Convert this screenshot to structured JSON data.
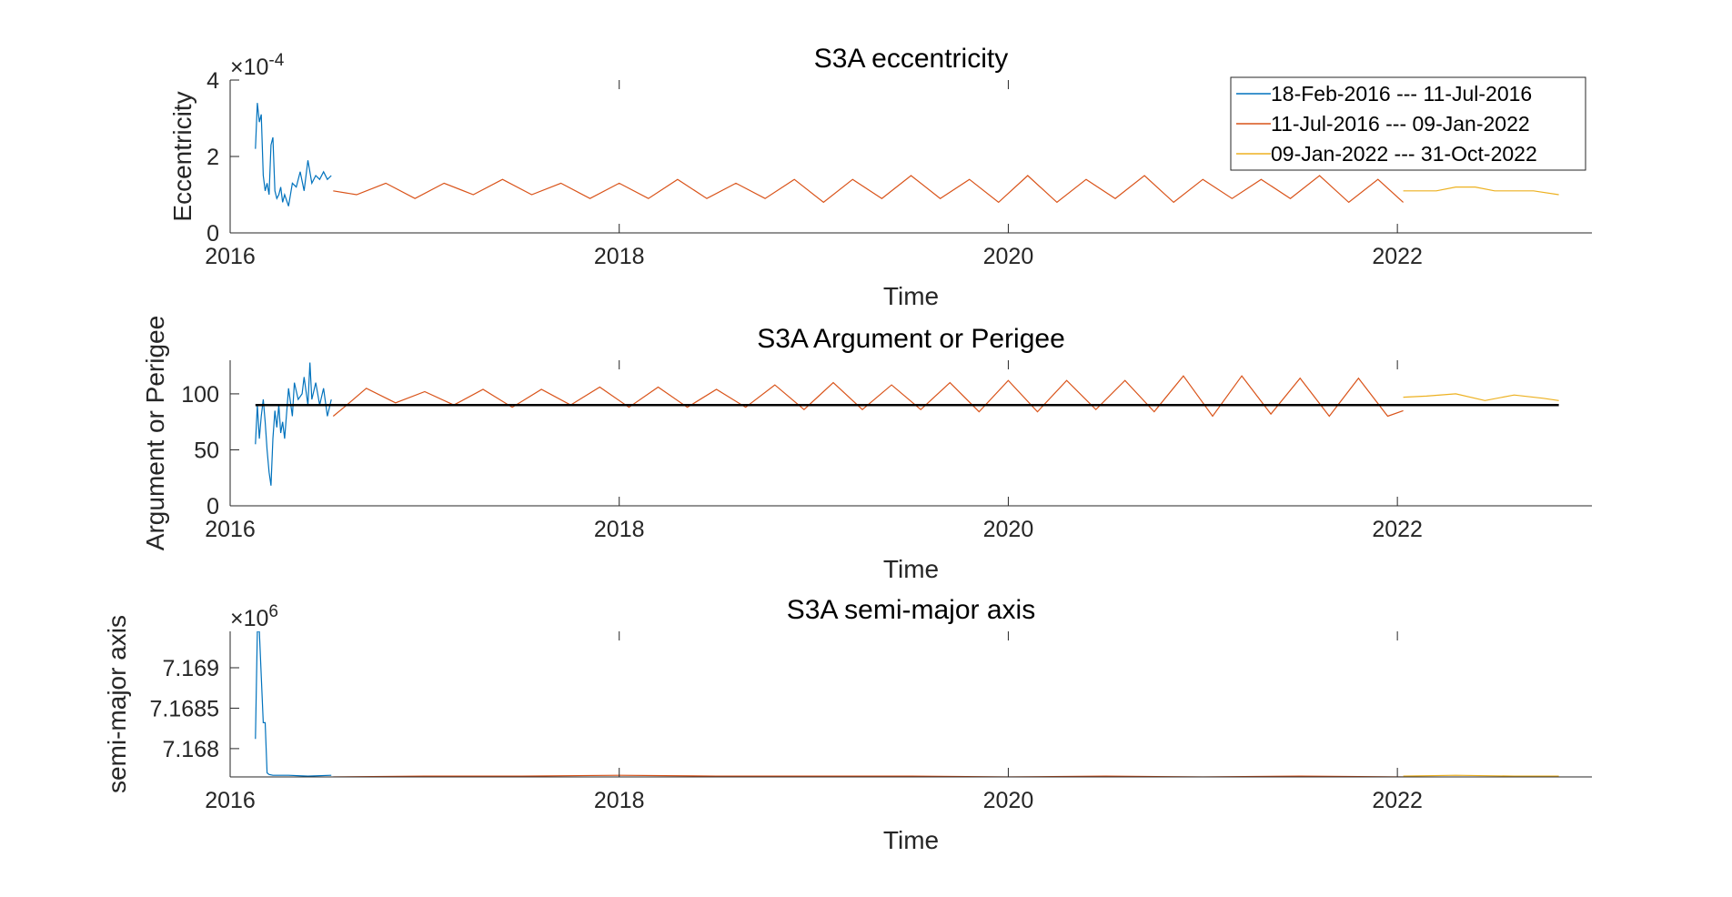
{
  "chart_data": [
    {
      "type": "line",
      "title": "S3A eccentricity",
      "xlabel": "Time",
      "ylabel": "Eccentricity",
      "y_exponent_base": "×10",
      "y_exponent_power": "-4",
      "xlim": [
        2016.0,
        2023.0
      ],
      "ylim": [
        0,
        4
      ],
      "xticks": [
        2016,
        2018,
        2020,
        2022
      ],
      "xtick_labels": [
        "2016",
        "2018",
        "2020",
        "2022"
      ],
      "yticks": [
        0,
        2,
        4
      ],
      "ytick_labels": [
        "0",
        "2",
        "4"
      ],
      "legend": "top-right",
      "grid": false,
      "series": [
        {
          "name": "18-Feb-2016 --- 11-Jul-2016",
          "color": "#0072BD",
          "x": [
            2016.13,
            2016.14,
            2016.15,
            2016.16,
            2016.17,
            2016.18,
            2016.19,
            2016.2,
            2016.21,
            2016.22,
            2016.23,
            2016.24,
            2016.25,
            2016.26,
            2016.27,
            2016.28,
            2016.3,
            2016.32,
            2016.34,
            2016.36,
            2016.38,
            2016.4,
            2016.42,
            2016.44,
            2016.46,
            2016.48,
            2016.5,
            2016.52
          ],
          "y": [
            2.2,
            3.4,
            2.9,
            3.1,
            1.5,
            1.1,
            1.3,
            1.0,
            2.3,
            2.5,
            1.1,
            0.9,
            1.0,
            1.2,
            0.8,
            1.0,
            0.7,
            1.3,
            1.2,
            1.6,
            1.1,
            1.9,
            1.3,
            1.5,
            1.4,
            1.6,
            1.4,
            1.5
          ]
        },
        {
          "name": "11-Jul-2016 --- 09-Jan-2022",
          "color": "#D95319",
          "x": [
            2016.53,
            2016.65,
            2016.8,
            2016.95,
            2017.1,
            2017.25,
            2017.4,
            2017.55,
            2017.7,
            2017.85,
            2018.0,
            2018.15,
            2018.3,
            2018.45,
            2018.6,
            2018.75,
            2018.9,
            2019.05,
            2019.2,
            2019.35,
            2019.5,
            2019.65,
            2019.8,
            2019.95,
            2020.1,
            2020.25,
            2020.4,
            2020.55,
            2020.7,
            2020.85,
            2021.0,
            2021.15,
            2021.3,
            2021.45,
            2021.6,
            2021.75,
            2021.9,
            2022.03
          ],
          "y": [
            1.1,
            1.0,
            1.3,
            0.9,
            1.3,
            1.0,
            1.4,
            1.0,
            1.3,
            0.9,
            1.3,
            0.9,
            1.4,
            0.9,
            1.3,
            0.9,
            1.4,
            0.8,
            1.4,
            0.9,
            1.5,
            0.9,
            1.4,
            0.8,
            1.5,
            0.8,
            1.4,
            0.9,
            1.5,
            0.8,
            1.4,
            0.9,
            1.4,
            0.9,
            1.5,
            0.8,
            1.4,
            0.8
          ]
        },
        {
          "name": "09-Jan-2022 --- 31-Oct-2022",
          "color": "#EDB120",
          "x": [
            2022.03,
            2022.1,
            2022.2,
            2022.3,
            2022.4,
            2022.5,
            2022.6,
            2022.7,
            2022.83
          ],
          "y": [
            1.1,
            1.1,
            1.1,
            1.2,
            1.2,
            1.1,
            1.1,
            1.1,
            1.0
          ]
        }
      ]
    },
    {
      "type": "line",
      "title": "S3A Argument or Perigee",
      "xlabel": "Time",
      "ylabel": "Argument or Perigee",
      "xlim": [
        2016.0,
        2023.0
      ],
      "ylim": [
        0,
        130
      ],
      "xticks": [
        2016,
        2018,
        2020,
        2022
      ],
      "xtick_labels": [
        "2016",
        "2018",
        "2020",
        "2022"
      ],
      "yticks": [
        0,
        50,
        100
      ],
      "ytick_labels": [
        "0",
        "50",
        "100"
      ],
      "grid": false,
      "series": [
        {
          "color": "#0072BD",
          "x": [
            2016.13,
            2016.14,
            2016.15,
            2016.16,
            2016.17,
            2016.18,
            2016.19,
            2016.2,
            2016.21,
            2016.22,
            2016.23,
            2016.24,
            2016.25,
            2016.26,
            2016.27,
            2016.28,
            2016.3,
            2016.32,
            2016.33,
            2016.35,
            2016.37,
            2016.38,
            2016.4,
            2016.41,
            2016.42,
            2016.44,
            2016.46,
            2016.48,
            2016.5,
            2016.52
          ],
          "y": [
            55,
            90,
            60,
            80,
            95,
            75,
            50,
            30,
            18,
            60,
            85,
            70,
            90,
            65,
            75,
            60,
            105,
            80,
            110,
            95,
            100,
            115,
            90,
            128,
            95,
            110,
            90,
            105,
            80,
            95
          ]
        },
        {
          "color": "#D95319",
          "x": [
            2016.53,
            2016.6,
            2016.7,
            2016.85,
            2017.0,
            2017.15,
            2017.3,
            2017.45,
            2017.6,
            2017.75,
            2017.9,
            2018.05,
            2018.2,
            2018.35,
            2018.5,
            2018.65,
            2018.8,
            2018.95,
            2019.1,
            2019.25,
            2019.4,
            2019.55,
            2019.7,
            2019.85,
            2020.0,
            2020.15,
            2020.3,
            2020.45,
            2020.6,
            2020.75,
            2020.9,
            2021.05,
            2021.2,
            2021.35,
            2021.5,
            2021.65,
            2021.8,
            2021.95,
            2022.03
          ],
          "y": [
            80,
            90,
            105,
            92,
            102,
            90,
            104,
            88,
            104,
            90,
            106,
            88,
            106,
            88,
            104,
            88,
            108,
            86,
            110,
            86,
            108,
            86,
            110,
            84,
            112,
            84,
            112,
            86,
            112,
            84,
            116,
            80,
            116,
            82,
            114,
            80,
            114,
            80,
            85
          ]
        },
        {
          "color": "#EDB120",
          "x": [
            2022.03,
            2022.15,
            2022.3,
            2022.45,
            2022.6,
            2022.75,
            2022.83
          ],
          "y": [
            97,
            98,
            100,
            94,
            99,
            96,
            94
          ]
        },
        {
          "color": "#000000",
          "x": [
            2016.13,
            2022.83
          ],
          "y": [
            90,
            90
          ]
        }
      ]
    },
    {
      "type": "line",
      "title": "S3A semi-major axis",
      "xlabel": "Time",
      "ylabel": "semi-major axis",
      "y_exponent_base": "×10",
      "y_exponent_power": "6",
      "xlim": [
        2016.0,
        2023.0
      ],
      "ylim": [
        7.16765,
        7.16945
      ],
      "xticks": [
        2016,
        2018,
        2020,
        2022
      ],
      "xtick_labels": [
        "2016",
        "2018",
        "2020",
        "2022"
      ],
      "yticks": [
        7.168,
        7.1685,
        7.169
      ],
      "ytick_labels": [
        "7.168",
        "7.1685",
        "7.169"
      ],
      "grid": false,
      "series": [
        {
          "color": "#0072BD",
          "x": [
            2016.13,
            2016.14,
            2016.15,
            2016.17,
            2016.18,
            2016.19,
            2016.2,
            2016.22,
            2016.3,
            2016.4,
            2016.52
          ],
          "y": [
            7.16812,
            7.16945,
            7.16945,
            7.16832,
            7.16832,
            7.1677,
            7.16768,
            7.16767,
            7.16767,
            7.16766,
            7.16767
          ]
        },
        {
          "color": "#D95319",
          "x": [
            2016.53,
            2017.0,
            2017.5,
            2018.0,
            2018.5,
            2019.0,
            2019.5,
            2020.0,
            2020.5,
            2021.0,
            2021.5,
            2022.03
          ],
          "y": [
            7.16765,
            7.16766,
            7.16766,
            7.16767,
            7.16766,
            7.16766,
            7.16766,
            7.16765,
            7.16766,
            7.16765,
            7.16766,
            7.16765
          ]
        },
        {
          "color": "#EDB120",
          "x": [
            2022.03,
            2022.3,
            2022.6,
            2022.83
          ],
          "y": [
            7.16766,
            7.16767,
            7.16766,
            7.16766
          ]
        }
      ]
    }
  ]
}
